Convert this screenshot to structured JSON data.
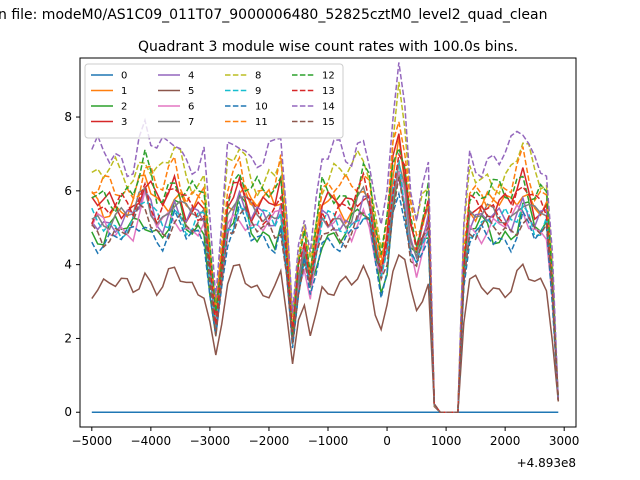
{
  "figure": {
    "suptitle": "n file: modeM0/AS1C09_011T07_9000006480_52825cztM0_level2_quad_clean",
    "background": "#ffffff"
  },
  "chart_data": {
    "type": "line",
    "title": "Quadrant 3 module wise count rates with 100.0s bins.",
    "xlabel": "",
    "ylabel": "",
    "x_offset_label": "+4.893e8",
    "xlim": [
      -5200,
      3200
    ],
    "ylim": [
      -0.4,
      9.6
    ],
    "xticks": [
      -5000,
      -4000,
      -3000,
      -2000,
      -1000,
      0,
      1000,
      2000,
      3000
    ],
    "xtick_labels": [
      "−5000",
      "−4000",
      "−3000",
      "−2000",
      "−1000",
      "0",
      "1000",
      "2000",
      "3000"
    ],
    "yticks": [
      0,
      2,
      4,
      6,
      8
    ],
    "ytick_labels": [
      "0",
      "2",
      "4",
      "6",
      "8"
    ],
    "grid": false,
    "legend_position": "top-left",
    "legend_columns": 4,
    "x": [
      -5000,
      -4900,
      -4800,
      -4700,
      -4600,
      -4500,
      -4400,
      -4300,
      -4200,
      -4100,
      -4000,
      -3900,
      -3800,
      -3700,
      -3600,
      -3500,
      -3400,
      -3300,
      -3200,
      -3100,
      -3000,
      -2900,
      -2800,
      -2700,
      -2600,
      -2500,
      -2400,
      -2300,
      -2200,
      -2100,
      -2000,
      -1900,
      -1800,
      -1700,
      -1600,
      -1500,
      -1400,
      -1300,
      -1200,
      -1100,
      -1000,
      -900,
      -800,
      -700,
      -600,
      -500,
      -400,
      -300,
      -200,
      -100,
      0,
      100,
      200,
      300,
      400,
      500,
      600,
      700,
      800,
      900,
      1000,
      1100,
      1200,
      1300,
      1400,
      1500,
      1600,
      1700,
      1800,
      1900,
      2000,
      2100,
      2200,
      2300,
      2400,
      2500,
      2600,
      2700,
      2800,
      2900
    ],
    "gap_segments": {
      "x": [
        800,
        900,
        1000,
        1100,
        1200
      ],
      "values": [
        0.15,
        0.0,
        0.0,
        0.0,
        0.0
      ],
      "note": "all modules drop to about 0 between 800 and 1200"
    },
    "series": [
      {
        "name": "0",
        "color": "#1f77b4",
        "dash": "solid",
        "level": 0.0,
        "amplitude": 0.0,
        "phase": 0
      },
      {
        "name": "1",
        "color": "#ff7f0e",
        "dash": "solid",
        "level": 5.6,
        "amplitude": 0.5,
        "phase": 1
      },
      {
        "name": "2",
        "color": "#2ca02c",
        "dash": "solid",
        "level": 4.9,
        "amplitude": 0.55,
        "phase": 2
      },
      {
        "name": "3",
        "color": "#d62728",
        "dash": "solid",
        "level": 5.6,
        "amplitude": 0.45,
        "phase": 3
      },
      {
        "name": "4",
        "color": "#9467bd",
        "dash": "solid",
        "level": 5.2,
        "amplitude": 0.4,
        "phase": 4
      },
      {
        "name": "5",
        "color": "#8c564b",
        "dash": "solid",
        "level": 3.4,
        "amplitude": 0.35,
        "phase": 5
      },
      {
        "name": "6",
        "color": "#e377c2",
        "dash": "solid",
        "level": 5.0,
        "amplitude": 0.45,
        "phase": 6
      },
      {
        "name": "7",
        "color": "#7f7f7f",
        "dash": "solid",
        "level": 5.3,
        "amplitude": 0.4,
        "phase": 7
      },
      {
        "name": "8",
        "color": "#bcbd22",
        "dash": "dashed",
        "level": 6.4,
        "amplitude": 0.55,
        "phase": 8
      },
      {
        "name": "9",
        "color": "#17becf",
        "dash": "dashed",
        "level": 5.1,
        "amplitude": 0.45,
        "phase": 9
      },
      {
        "name": "10",
        "color": "#1f77b4",
        "dash": "dashed",
        "level": 4.7,
        "amplitude": 0.4,
        "phase": 10
      },
      {
        "name": "11",
        "color": "#ff7f0e",
        "dash": "dashed",
        "level": 6.0,
        "amplitude": 0.5,
        "phase": 11
      },
      {
        "name": "12",
        "color": "#2ca02c",
        "dash": "dashed",
        "level": 5.9,
        "amplitude": 0.5,
        "phase": 12
      },
      {
        "name": "13",
        "color": "#d62728",
        "dash": "dashed",
        "level": 5.5,
        "amplitude": 0.45,
        "phase": 13
      },
      {
        "name": "14",
        "color": "#9467bd",
        "dash": "dashed",
        "level": 6.9,
        "amplitude": 0.6,
        "phase": 14
      },
      {
        "name": "15",
        "color": "#8c564b",
        "dash": "dashed",
        "level": 4.9,
        "amplitude": 0.45,
        "phase": 15
      }
    ],
    "shape": {
      "dips": [
        {
          "x": -2900,
          "depth": 0.55
        },
        {
          "x": -1600,
          "depth": 0.65
        },
        {
          "x": -1300,
          "depth": 0.35
        },
        {
          "x": -100,
          "depth": 0.3
        },
        {
          "x": 500,
          "depth": 0.2
        }
      ],
      "peaks": [
        {
          "x": -4100,
          "gain": 0.12
        },
        {
          "x": -3600,
          "gain": 0.1
        },
        {
          "x": -2500,
          "gain": 0.12
        },
        {
          "x": -1700,
          "gain": 0.15
        },
        {
          "x": -400,
          "gain": 0.1
        },
        {
          "x": 200,
          "gain": 0.3
        },
        {
          "x": 2300,
          "gain": 0.12
        }
      ],
      "end_value": 0.3,
      "end_x": 2900,
      "start_after_gap": {
        "x": 1300,
        "factor": 0.72
      }
    }
  }
}
